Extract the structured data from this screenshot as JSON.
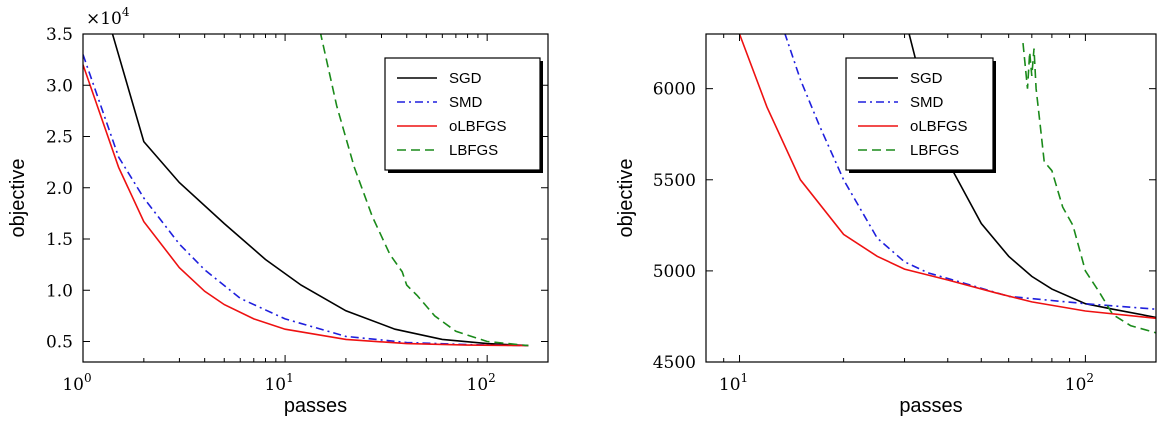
{
  "chart_data": [
    {
      "type": "line",
      "xscale": "log",
      "xlim": [
        1,
        200
      ],
      "ylim": [
        0.3,
        3.5
      ],
      "y_multiplier": "×10",
      "y_multiplier_exp": "4",
      "xlabel": "passes",
      "ylabel": "objective",
      "x_ticks": [
        {
          "value": 1,
          "base": "10",
          "exp": "0"
        },
        {
          "value": 10,
          "base": "10",
          "exp": "1"
        },
        {
          "value": 100,
          "base": "10",
          "exp": "2"
        }
      ],
      "y_ticks": [
        {
          "value": 0.5,
          "label": "0.5"
        },
        {
          "value": 1.0,
          "label": "1.0"
        },
        {
          "value": 1.5,
          "label": "1.5"
        },
        {
          "value": 2.0,
          "label": "2.0"
        },
        {
          "value": 2.5,
          "label": "2.5"
        },
        {
          "value": 3.0,
          "label": "3.0"
        },
        {
          "value": 3.5,
          "label": "3.5"
        }
      ],
      "legend_position": "top-right",
      "series": [
        {
          "name": "SGD",
          "color": "#000000",
          "dash": "solid",
          "x": [
            1,
            1.4,
            2,
            3,
            5,
            8,
            12,
            20,
            35,
            60,
            100,
            160
          ],
          "y": [
            5.0,
            3.5,
            2.45,
            2.05,
            1.65,
            1.3,
            1.05,
            0.8,
            0.62,
            0.52,
            0.48,
            0.46
          ]
        },
        {
          "name": "SMD",
          "color": "#1f1fdd",
          "dash": "dashdot",
          "x": [
            1,
            1.5,
            2,
            3,
            4,
            6,
            10,
            20,
            40,
            80,
            160
          ],
          "y": [
            3.3,
            2.3,
            1.9,
            1.45,
            1.2,
            0.92,
            0.72,
            0.55,
            0.49,
            0.47,
            0.46
          ]
        },
        {
          "name": "oLBFGS",
          "color": "#ee1111",
          "dash": "solid",
          "x": [
            1,
            1.5,
            2,
            3,
            4,
            5,
            7,
            10,
            20,
            40,
            80,
            160
          ],
          "y": [
            3.2,
            2.2,
            1.67,
            1.22,
            0.99,
            0.86,
            0.72,
            0.62,
            0.52,
            0.48,
            0.465,
            0.46
          ]
        },
        {
          "name": "LBFGS",
          "color": "#1a8a1a",
          "dash": "dashed",
          "x": [
            13,
            15,
            18,
            22,
            27,
            33,
            38,
            40,
            45,
            55,
            70,
            100,
            160
          ],
          "y": [
            4.2,
            3.5,
            2.8,
            2.2,
            1.72,
            1.35,
            1.18,
            1.05,
            0.95,
            0.75,
            0.6,
            0.5,
            0.46
          ]
        }
      ]
    },
    {
      "type": "line",
      "xscale": "log",
      "xlim": [
        8,
        160
      ],
      "ylim": [
        4500,
        6300
      ],
      "xlabel": "passes",
      "ylabel": "objective",
      "x_ticks": [
        {
          "value": 10,
          "base": "10",
          "exp": "1"
        },
        {
          "value": 100,
          "base": "10",
          "exp": "2"
        }
      ],
      "y_ticks": [
        {
          "value": 4500,
          "label": "4500"
        },
        {
          "value": 5000,
          "label": "5000"
        },
        {
          "value": 5500,
          "label": "5500"
        },
        {
          "value": 6000,
          "label": "6000"
        }
      ],
      "legend_position": "top-center",
      "series": [
        {
          "name": "SGD",
          "color": "#000000",
          "dash": "solid",
          "x": [
            30,
            35,
            40,
            50,
            60,
            70,
            80,
            100,
            120,
            160
          ],
          "y": [
            6400,
            5900,
            5600,
            5260,
            5080,
            4970,
            4900,
            4820,
            4790,
            4745
          ]
        },
        {
          "name": "SMD",
          "color": "#1f1fdd",
          "dash": "dashdot",
          "x": [
            13,
            15,
            17,
            20,
            25,
            30,
            35,
            45,
            60,
            100,
            160
          ],
          "y": [
            6400,
            6050,
            5800,
            5500,
            5180,
            5050,
            4990,
            4930,
            4860,
            4820,
            4790
          ]
        },
        {
          "name": "oLBFGS",
          "color": "#ee1111",
          "dash": "solid",
          "x": [
            10,
            12,
            15,
            20,
            25,
            30,
            40,
            55,
            70,
            100,
            160
          ],
          "y": [
            6300,
            5900,
            5500,
            5200,
            5080,
            5010,
            4950,
            4880,
            4830,
            4780,
            4740
          ]
        },
        {
          "name": "LBFGS",
          "color": "#1a8a1a",
          "dash": "dashed",
          "x": [
            66,
            68,
            69,
            70,
            71,
            72,
            74,
            76,
            80,
            86,
            92,
            100,
            110,
            120,
            135,
            160
          ],
          "y": [
            6250,
            6000,
            6200,
            6070,
            6220,
            6000,
            5800,
            5600,
            5550,
            5350,
            5250,
            5000,
            4880,
            4760,
            4700,
            4660
          ]
        }
      ]
    }
  ]
}
